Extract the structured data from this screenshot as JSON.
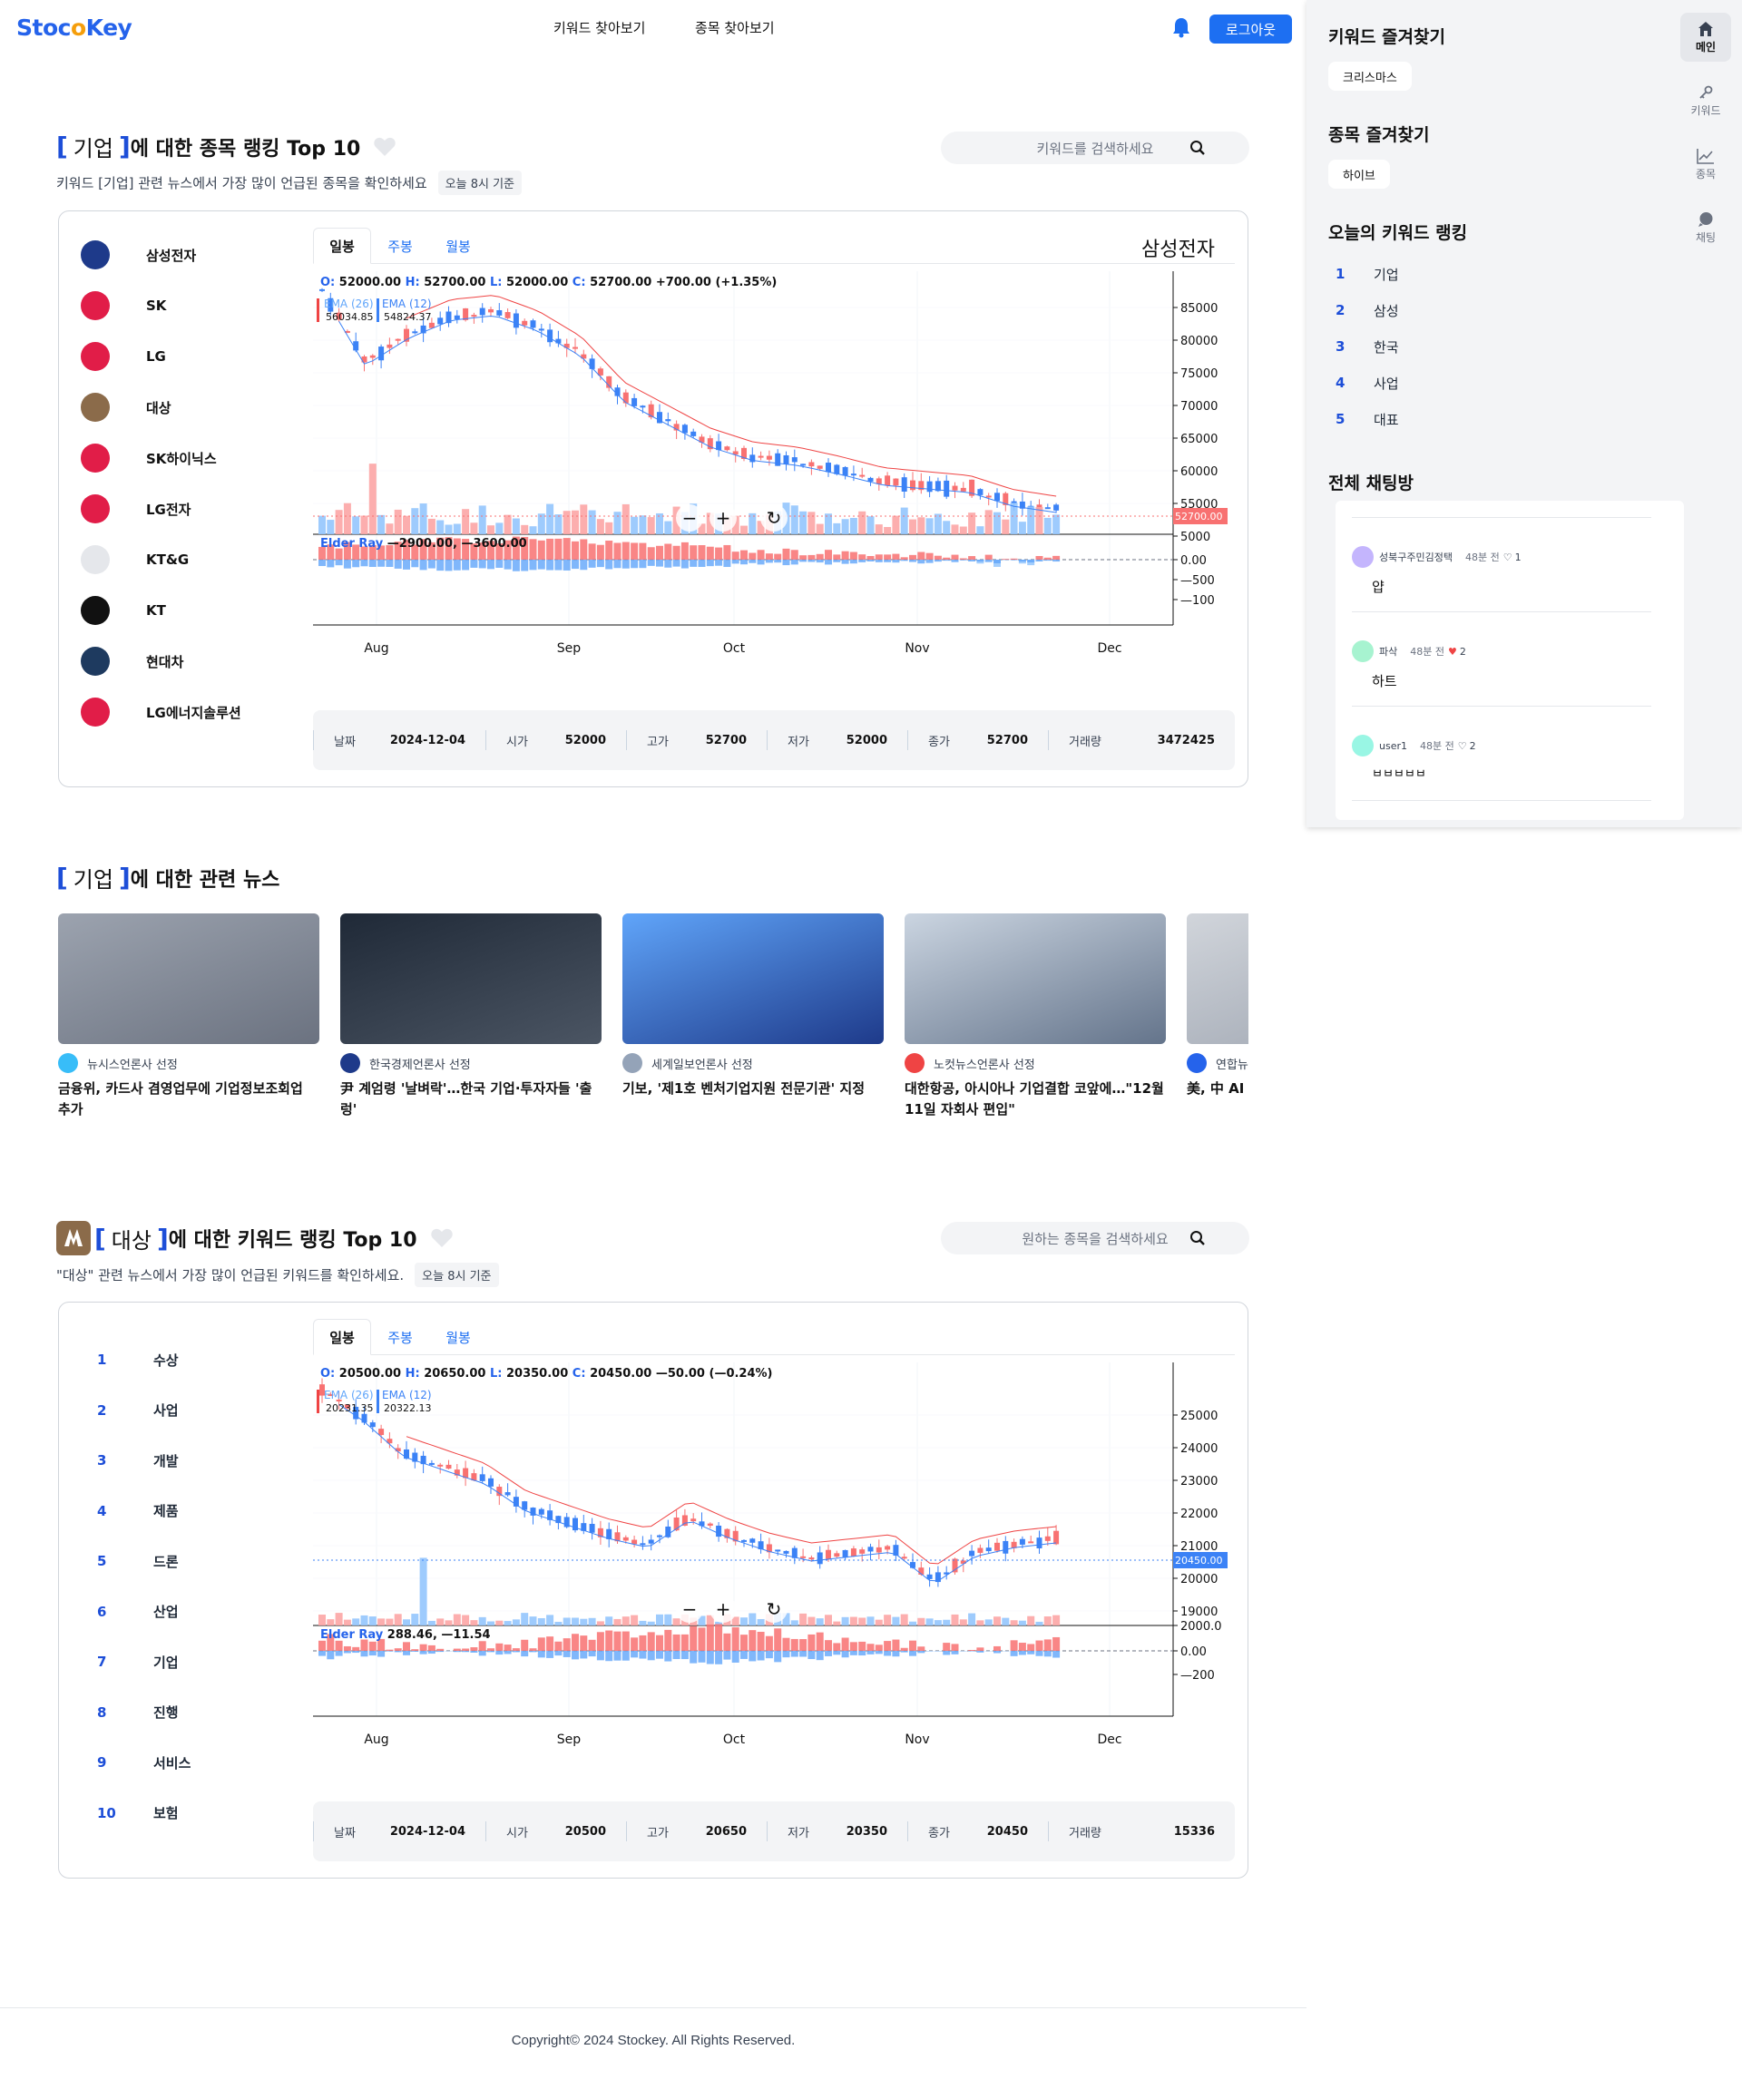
{
  "header": {
    "logo_left": "Stoc",
    "logo_mid": "o",
    "logo_right": "Key",
    "nav": [
      "키워드 찾아보기",
      "종목 찾아보기"
    ],
    "logout_label": "로그아웃"
  },
  "sidebar": {
    "keyword_fav_title": "키워드 즐겨찾기",
    "keyword_fav_chip": "크리스마스",
    "stock_fav_title": "종목 즐겨찾기",
    "stock_fav_chip": "하이브",
    "today_rank_title": "오늘의 키워드 랭킹",
    "today_rank": [
      {
        "n": "1",
        "label": "기업"
      },
      {
        "n": "2",
        "label": "삼성"
      },
      {
        "n": "3",
        "label": "한국"
      },
      {
        "n": "4",
        "label": "사업"
      },
      {
        "n": "5",
        "label": "대표"
      }
    ],
    "chat_title": "전체 채팅방",
    "chats": [
      {
        "user": "성북구주민김정택",
        "time": "48분 전",
        "likes": "1",
        "text": "얍"
      },
      {
        "user": "파삭",
        "time": "48분 전",
        "likes": "2",
        "text": "하트"
      },
      {
        "user": "user1",
        "time": "48분 전",
        "likes": "2",
        "text": "ㅂㅂㅂㅂㅂ"
      }
    ],
    "rail": [
      "메인",
      "키워드",
      "종목",
      "채팅"
    ]
  },
  "section1": {
    "keyword": "기업",
    "title_suffix": "에 대한 종목 랭킹 Top 10",
    "subtitle": "키워드 [기업] 관련 뉴스에서 가장 많이 언급된 종목을 확인하세요",
    "badge": "오늘 8시 기준",
    "search_placeholder": "키워드를 검색하세요",
    "stocks": [
      "삼성전자",
      "SK",
      "LG",
      "대상",
      "SK하이닉스",
      "LG전자",
      "KT&G",
      "KT",
      "현대차",
      "LG에너지솔루션"
    ],
    "tabs": [
      "일봉",
      "주봉",
      "월봉"
    ],
    "chart_name": "삼성전자",
    "ohlc": {
      "o": "52000.00",
      "h": "52700.00",
      "l": "52000.00",
      "c": "52700.00",
      "chg": "+700.00 (+1.35%)"
    },
    "ema26_label": "EMA (26)",
    "ema26": "56034.85",
    "ema12_label": "EMA (12)",
    "ema12": "54824.37",
    "elder_label": "Elder Ray",
    "elder_val": "—2900.00, —3600.00",
    "y_ticks": [
      "85000",
      "80000",
      "75000",
      "70000",
      "65000",
      "60000",
      "55000",
      "5000"
    ],
    "y_sub_ticks": [
      "0.00",
      "—500",
      "—100"
    ],
    "last_price": "52700.00",
    "x_ticks": [
      "Aug",
      "Sep",
      "Oct",
      "Nov",
      "Dec"
    ],
    "info": [
      {
        "k": "날짜",
        "v": "2024-12-04"
      },
      {
        "k": "시가",
        "v": "52000"
      },
      {
        "k": "고가",
        "v": "52700"
      },
      {
        "k": "저가",
        "v": "52000"
      },
      {
        "k": "종가",
        "v": "52700"
      },
      {
        "k": "거래량",
        "v": "3472425"
      }
    ]
  },
  "news": {
    "keyword": "기업",
    "title_suffix": "에 대한 관련 뉴스",
    "items": [
      {
        "source": "뉴시스언론사 선정",
        "title": "금융위, 카드사 겸영업무에 기업정보조회업 추가"
      },
      {
        "source": "한국경제언론사 선정",
        "title": "尹 계엄령 '날벼락'…한국 기업·투자자들 '출렁'"
      },
      {
        "source": "세계일보언론사 선정",
        "title": "기보, '제1호 벤처기업지원 전문기관' 지정"
      },
      {
        "source": "노컷뉴스언론사 선정",
        "title": "대한항공, 아시아나 기업결합 코앞에…\"12월11일 자회사 편입\""
      },
      {
        "source": "연합뉴",
        "title": "美, 中 AI 국 기업 수"
      }
    ]
  },
  "section2": {
    "keyword": "대상",
    "title_suffix": "에 대한 키워드 랭킹 Top 10",
    "subtitle": "\"대상\" 관련 뉴스에서 가장 많이 언급된 키워드를 확인하세요.",
    "badge": "오늘 8시 기준",
    "search_placeholder": "원하는 종목을 검색하세요",
    "keywords": [
      "수상",
      "사업",
      "개발",
      "제품",
      "드론",
      "산업",
      "기업",
      "진행",
      "서비스",
      "보험"
    ],
    "tabs": [
      "일봉",
      "주봉",
      "월봉"
    ],
    "ohlc": {
      "o": "20500.00",
      "h": "20650.00",
      "l": "20350.00",
      "c": "20450.00",
      "chg": "—50.00 (—0.24%)"
    },
    "ema26_label": "EMA (26)",
    "ema26": "20231.35",
    "ema12_label": "EMA (12)",
    "ema12": "20322.13",
    "elder_label": "Elder Ray",
    "elder_val": "288.46, —11.54",
    "y_ticks": [
      "25000",
      "24000",
      "23000",
      "22000",
      "21000",
      "20000",
      "19000",
      "2000.0"
    ],
    "y_sub_ticks": [
      "0.00",
      "—200"
    ],
    "last_price": "20450.00",
    "x_ticks": [
      "Aug",
      "Sep",
      "Oct",
      "Nov",
      "Dec"
    ],
    "info": [
      {
        "k": "날짜",
        "v": "2024-12-04"
      },
      {
        "k": "시가",
        "v": "20500"
      },
      {
        "k": "고가",
        "v": "20650"
      },
      {
        "k": "저가",
        "v": "20350"
      },
      {
        "k": "종가",
        "v": "20450"
      },
      {
        "k": "거래량",
        "v": "15336"
      }
    ]
  },
  "footer": "Copyright© 2024 Stockey. All Rights Reserved.",
  "colors": {
    "accent": "#1d6ff2",
    "up": "#ef4444",
    "down": "#3b82f6"
  }
}
